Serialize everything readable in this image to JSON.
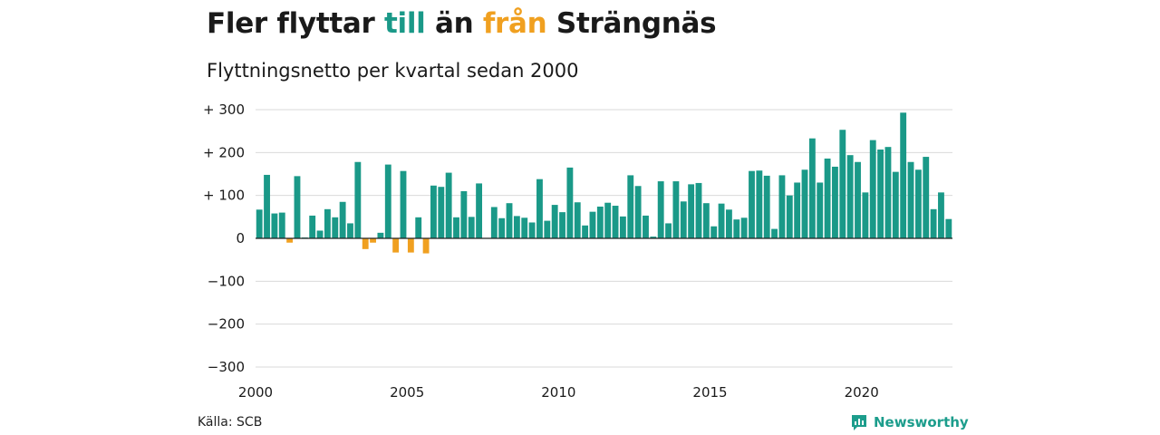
{
  "title": {
    "part1": "Fler flyttar ",
    "part2": "till",
    "part3": " än ",
    "part4": "från",
    "part5": " Strängnäs"
  },
  "subtitle": "Flyttningsnetto per kvartal sedan 2000",
  "source": "Källa: SCB",
  "brand": "Newsworthy",
  "colors": {
    "positive": "#1a9988",
    "negative": "#f0a020",
    "text": "#1a1a1a",
    "grid": "#d9d9d9",
    "brand": "#1c9d8c"
  },
  "chart_data": {
    "type": "bar",
    "x": [
      2000.0,
      2000.25,
      2000.5,
      2000.75,
      2001.0,
      2001.25,
      2001.5,
      2001.75,
      2002.0,
      2002.25,
      2002.5,
      2002.75,
      2003.0,
      2003.25,
      2003.5,
      2003.75,
      2004.0,
      2004.25,
      2004.5,
      2004.75,
      2005.0,
      2005.25,
      2005.5,
      2005.75,
      2006.0,
      2006.25,
      2006.5,
      2006.75,
      2007.0,
      2007.25,
      2007.5,
      2007.75,
      2008.0,
      2008.25,
      2008.5,
      2008.75,
      2009.0,
      2009.25,
      2009.5,
      2009.75,
      2010.0,
      2010.25,
      2010.5,
      2010.75,
      2011.0,
      2011.25,
      2011.5,
      2011.75,
      2012.0,
      2012.25,
      2012.5,
      2012.75,
      2013.0,
      2013.25,
      2013.5,
      2013.75,
      2014.0,
      2014.25,
      2014.5,
      2014.75,
      2015.0,
      2015.25,
      2015.5,
      2015.75,
      2016.0,
      2016.25,
      2016.5,
      2016.75,
      2017.0,
      2017.25,
      2017.5,
      2017.75,
      2018.0,
      2018.25,
      2018.5,
      2018.75,
      2019.0,
      2019.25,
      2019.5,
      2019.75,
      2020.0,
      2020.25,
      2020.5,
      2020.75,
      2021.0,
      2021.25,
      2021.5,
      2021.75,
      2022.0,
      2022.25,
      2022.5,
      2022.75
    ],
    "values": [
      67,
      148,
      58,
      60,
      -10,
      145,
      2,
      53,
      18,
      68,
      49,
      85,
      35,
      178,
      -25,
      -10,
      13,
      172,
      -33,
      157,
      -33,
      49,
      -35,
      123,
      120,
      153,
      49,
      110,
      50,
      128,
      0,
      73,
      47,
      82,
      52,
      48,
      37,
      138,
      41,
      78,
      61,
      165,
      84,
      30,
      62,
      74,
      83,
      76,
      51,
      147,
      122,
      53,
      4,
      133,
      35,
      133,
      86,
      126,
      129,
      82,
      28,
      81,
      67,
      44,
      48,
      157,
      158,
      146,
      22,
      147,
      100,
      130,
      160,
      233,
      130,
      186,
      167,
      253,
      194,
      178,
      107,
      229,
      207,
      213,
      155,
      293,
      178,
      160,
      190,
      68,
      107,
      45
    ],
    "yticks": [
      300,
      200,
      100,
      0,
      -100,
      -200,
      -300
    ],
    "ytick_labels": [
      "+ 300",
      "+ 200",
      "+ 100",
      "0",
      "−100",
      "−200",
      "−300"
    ],
    "xticks": [
      2000,
      2005,
      2010,
      2015,
      2020
    ],
    "xtick_labels": [
      "2000",
      "2005",
      "2010",
      "2015",
      "2020"
    ],
    "ylim": [
      -300,
      300
    ],
    "xlim": [
      2000,
      2023
    ],
    "grid": true,
    "legend": "none"
  }
}
